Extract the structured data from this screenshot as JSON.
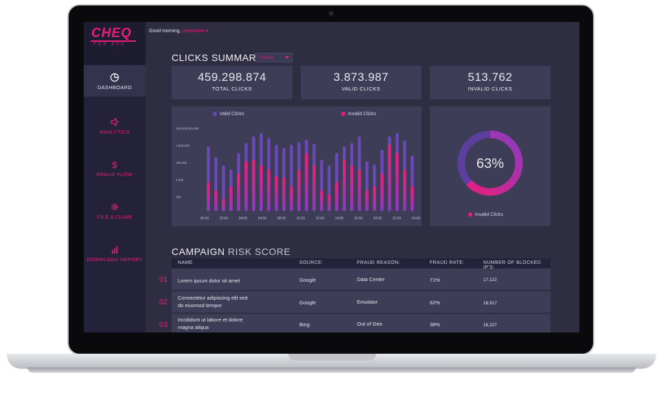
{
  "app": {
    "logo": "CHEQ",
    "logo_sub": "FOR PPC",
    "greeting_prefix": "Good morning,",
    "username": "Username"
  },
  "sidebar": {
    "items": [
      {
        "label": "DASHBOARD",
        "icon": "pie-chart-icon",
        "active": true
      },
      {
        "label": "ANALYTICS",
        "icon": "megaphone-icon",
        "active": false
      },
      {
        "label": "FRAUD FLOW",
        "icon": "dollar-icon",
        "active": false
      },
      {
        "label": "FILE A CLAIM",
        "icon": "gear-icon",
        "active": false
      },
      {
        "label": "DOWNLOAD REPORT",
        "icon": "bar-chart-icon",
        "active": false
      }
    ]
  },
  "clicks_summary": {
    "title": "CLICKS SUMMARY",
    "range": "TODAY",
    "stats": [
      {
        "value": "459.298.874",
        "label": "TOTAL CLICKS"
      },
      {
        "value": "3.873.987",
        "label": "VALID CLICKS"
      },
      {
        "value": "513.762",
        "label": "INVALID CLICKS"
      }
    ]
  },
  "chart_data": {
    "type": "bar",
    "title": "",
    "scale": "log",
    "y_ticks": [
      "100,000,000,000",
      "1,000,000",
      "100,000",
      "1,000",
      "100"
    ],
    "x_ticks": [
      "00:00",
      "02:00",
      "04:00",
      "04:00",
      "08:00",
      "10:00",
      "12:00",
      "14:00",
      "16:00",
      "20:00",
      "22:00",
      "24:00"
    ],
    "series": [
      {
        "name": "Valid Clicks",
        "color": "#6b49b7",
        "values": [
          0.78,
          0.65,
          0.55,
          0.5,
          0.7,
          0.82,
          0.9,
          0.94,
          0.88,
          0.8,
          0.76,
          0.8,
          0.83,
          0.86,
          0.81,
          0.62,
          0.55,
          0.7,
          0.78,
          0.82,
          0.9,
          0.6,
          0.56,
          0.74,
          0.9,
          0.94,
          0.85,
          0.67
        ]
      },
      {
        "name": "Invalid Clicks",
        "color": "#ec1e7a",
        "values": [
          0.35,
          0.25,
          0.15,
          0.3,
          0.45,
          0.6,
          0.62,
          0.55,
          0.5,
          0.42,
          0.4,
          0.3,
          0.5,
          0.7,
          0.55,
          0.25,
          0.2,
          0.35,
          0.62,
          0.55,
          0.5,
          0.25,
          0.3,
          0.45,
          0.8,
          0.7,
          0.5,
          0.3
        ]
      }
    ]
  },
  "donut": {
    "value": 0.63,
    "label": "63%",
    "legend": "Invalid Clicks"
  },
  "campaign": {
    "title_bold": "CAMPAIGN",
    "title_thin": "RISK SCORE",
    "columns": [
      "NAME",
      "SOURCE:",
      "FRAUD REASON:",
      "FRAUD RATE:",
      "NUMBER OF BLOCKED IP'S:"
    ],
    "rows": [
      {
        "num": "01",
        "name": "Lorem ipsum dolor sit amet",
        "source": "Google",
        "reason": "Data Center",
        "rate": "71%",
        "blocked": "17,122"
      },
      {
        "num": "02",
        "name": "Consectetur adipiscing elit sed do eiusmod tempor",
        "source": "Google",
        "reason": "Emulator",
        "rate": "62%",
        "blocked": "16,917"
      },
      {
        "num": "03",
        "name": "Incididunt ut labore et dolore magna aliqua",
        "source": "Bing",
        "reason": "Out of Geo",
        "rate": "38%",
        "blocked": "16,227"
      }
    ]
  },
  "colors": {
    "accent": "#ec1e7a",
    "purple": "#6b49b7",
    "panel": "#3e3d58",
    "background": "#2e2d42"
  }
}
